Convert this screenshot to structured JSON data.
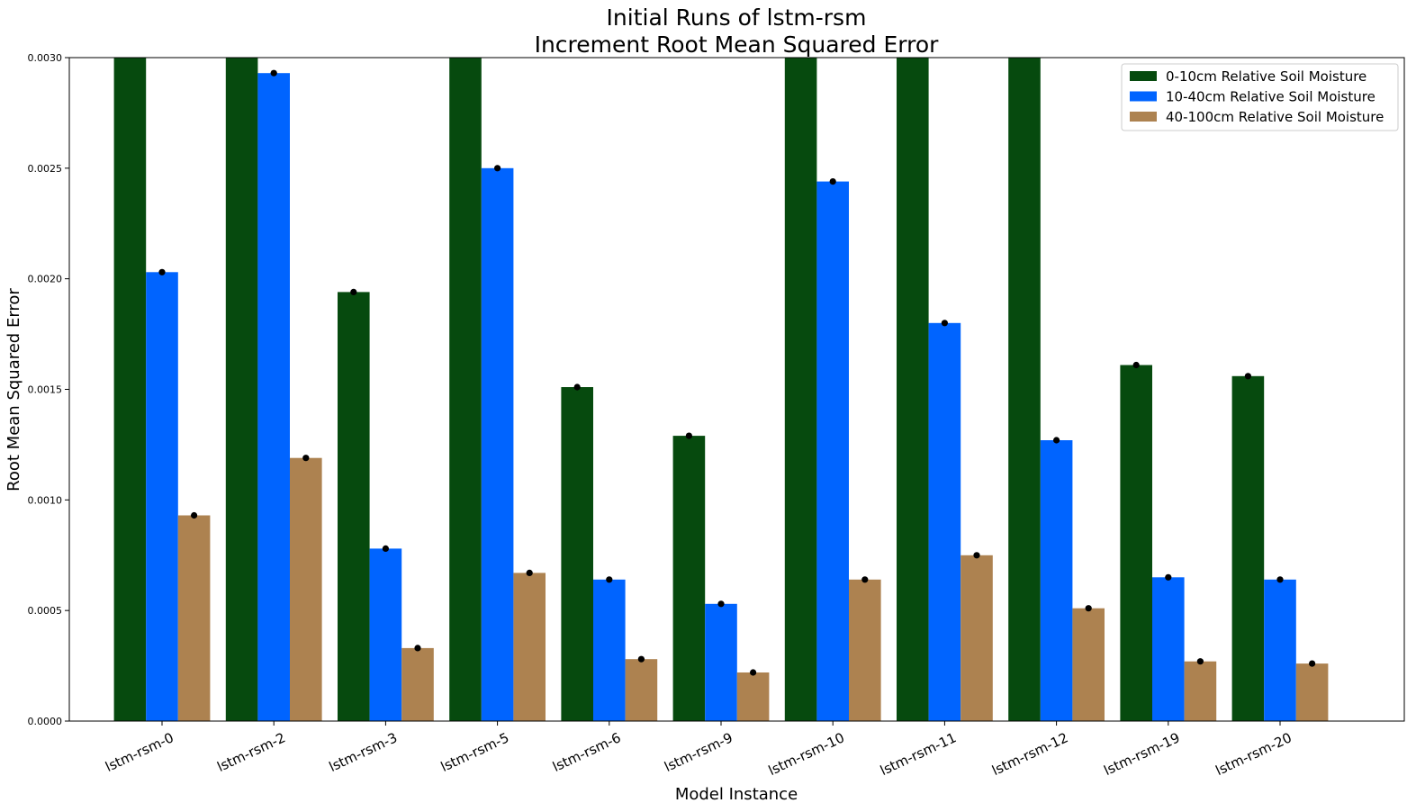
{
  "chart_data": {
    "type": "bar",
    "title": "Initial Runs of lstm-rsm",
    "subtitle": "Increment Root Mean Squared Error",
    "xlabel": "Model Instance",
    "ylabel": "Root Mean Squared Error",
    "ylim": [
      0,
      0.003
    ],
    "yticks": [
      "0.0000",
      "0.0005",
      "0.0010",
      "0.0015",
      "0.0020",
      "0.0025",
      "0.0030"
    ],
    "categories": [
      "lstm-rsm-0",
      "lstm-rsm-2",
      "lstm-rsm-3",
      "lstm-rsm-5",
      "lstm-rsm-6",
      "lstm-rsm-9",
      "lstm-rsm-10",
      "lstm-rsm-11",
      "lstm-rsm-12",
      "lstm-rsm-19",
      "lstm-rsm-20"
    ],
    "legend_position": "top-right",
    "grid": false,
    "series": [
      {
        "name": "0-10cm Relative Soil Moisture",
        "color": "#064a0e",
        "values": [
          0.0031,
          0.0031,
          0.00194,
          0.0031,
          0.00151,
          0.00129,
          0.0031,
          0.0031,
          0.0031,
          0.00161,
          0.00156
        ]
      },
      {
        "name": "10-40cm Relative Soil Moisture",
        "color": "#0064ff",
        "values": [
          0.00203,
          0.00293,
          0.00078,
          0.0025,
          0.00064,
          0.00053,
          0.00244,
          0.0018,
          0.00127,
          0.00065,
          0.00064
        ]
      },
      {
        "name": "40-100cm Relative Soil Moisture",
        "color": "#ad8250",
        "values": [
          0.00093,
          0.00119,
          0.00033,
          0.00067,
          0.00028,
          0.00022,
          0.00064,
          0.00075,
          0.00051,
          0.00027,
          0.00026
        ]
      }
    ]
  }
}
